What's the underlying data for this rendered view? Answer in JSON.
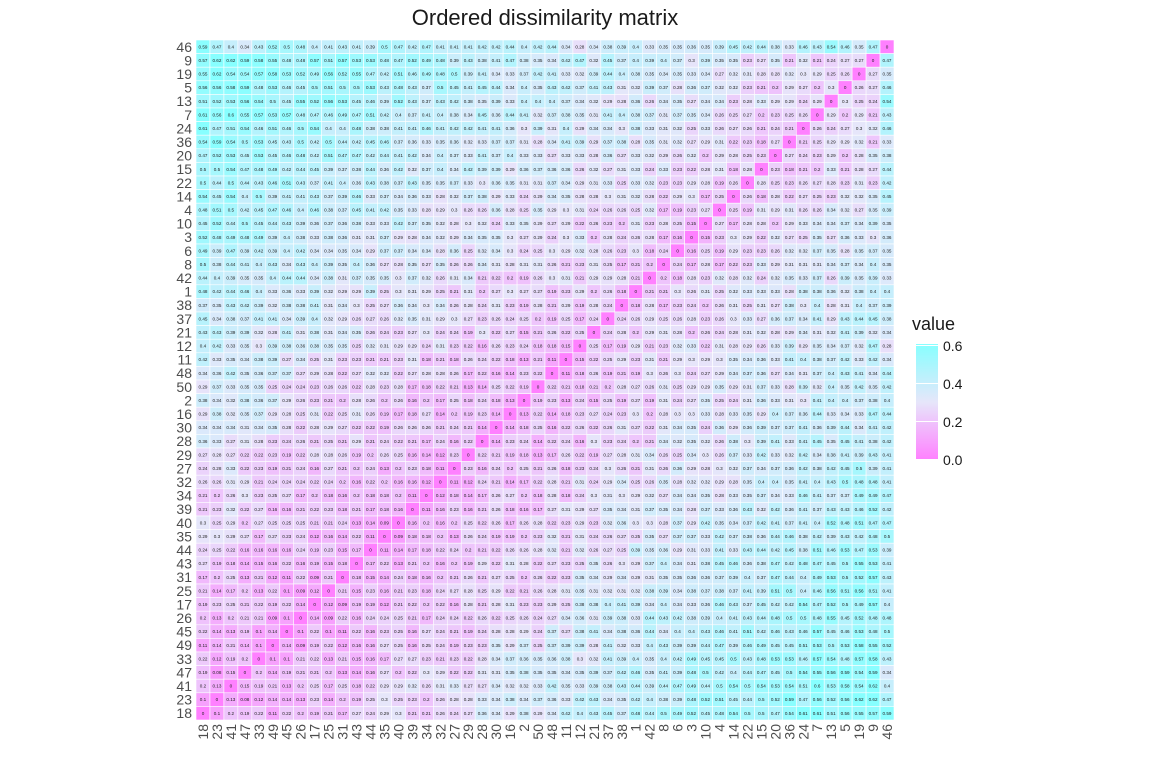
{
  "chart_data": {
    "type": "heatmap",
    "title": "Ordered dissimilarity matrix",
    "legend_title": "value",
    "legend_ticks": [
      "0.6",
      "0.4",
      "0.2",
      "0.0"
    ],
    "value_range": [
      0,
      0.62
    ],
    "colors": {
      "low": "#ff80ff",
      "mid": "#e6e6fa",
      "high": "#87ffff"
    },
    "x_order": [
      "18",
      "23",
      "41",
      "47",
      "33",
      "49",
      "45",
      "26",
      "17",
      "25",
      "31",
      "43",
      "44",
      "35",
      "40",
      "39",
      "34",
      "32",
      "27",
      "29",
      "28",
      "30",
      "16",
      "2",
      "50",
      "48",
      "11",
      "12",
      "21",
      "37",
      "38",
      "1",
      "42",
      "8",
      "6",
      "3",
      "10",
      "4",
      "14",
      "22",
      "15",
      "20",
      "36",
      "24",
      "7",
      "13",
      "5",
      "19",
      "9",
      "46"
    ],
    "y_labels_top_to_bottom": [
      "46",
      "9",
      "19",
      "5",
      "13",
      "7",
      "24",
      "36",
      "20",
      "15",
      "22",
      "14",
      "4",
      "10",
      "3",
      "6",
      "8",
      "42",
      "1",
      "38",
      "37",
      "21",
      "12",
      "11",
      "48",
      "50",
      "2",
      "16",
      "30",
      "28",
      "29",
      "27",
      "32",
      "34",
      "39",
      "40",
      "35",
      "44",
      "43",
      "31",
      "25",
      "17",
      "26",
      "45",
      "49",
      "33",
      "47",
      "41",
      "23",
      "18"
    ],
    "first_row_values": {
      "label": "46",
      "values": [
        0.59,
        0.47,
        0.4,
        0.34,
        0.43,
        0.52,
        0.5,
        0.48,
        0.4,
        0.41,
        0.43,
        0.41,
        0.39,
        0.5,
        0.47,
        0.42,
        0.47,
        0.41,
        0.41,
        0.41,
        0.42,
        0.42,
        0.44,
        0.4,
        0.42,
        0.44,
        0.34,
        0.28,
        0.34,
        0.38,
        0.39,
        0.4,
        0.33,
        0.35,
        0.35,
        0.36,
        0.35,
        0.39,
        0.45,
        0.42,
        0.44,
        0.38,
        0.33,
        0.46,
        0.43,
        0.54,
        0.46,
        0.35,
        0.47,
        0
      ]
    },
    "values_source": "symmetric dissimilarity matrix, diagonal 0; low values concentrated in the lower-left cluster, higher values toward columns 15-46",
    "grid": false
  }
}
